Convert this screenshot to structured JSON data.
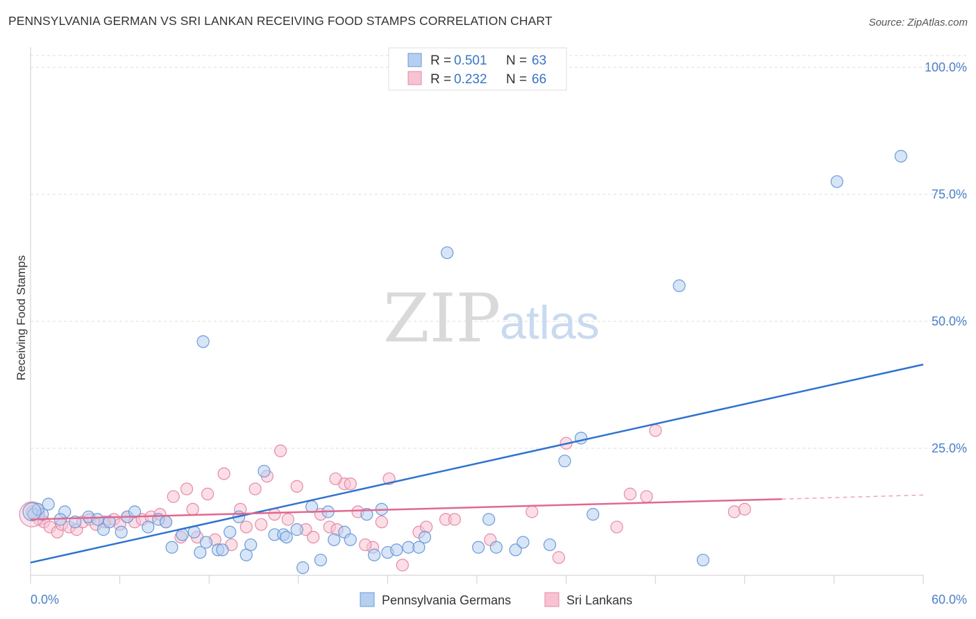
{
  "title": "PENNSYLVANIA GERMAN VS SRI LANKAN RECEIVING FOOD STAMPS CORRELATION CHART",
  "source": "Source: ZipAtlas.com",
  "watermark": {
    "left": "ZIP",
    "right": "atlas"
  },
  "colors": {
    "blue_fill": "#b6cff0",
    "blue_stroke": "#6b9ad8",
    "blue_line": "#2f72d0",
    "pink_fill": "#f7c3d2",
    "pink_stroke": "#e58aa6",
    "pink_line": "#e0688f",
    "grid": "#dddddd",
    "tick_text": "#4a7fc8"
  },
  "legend": {
    "r_label": "R =",
    "n_label": "N =",
    "items": [
      {
        "r": "0.501",
        "n": "63"
      },
      {
        "r": "0.232",
        "n": "66"
      }
    ]
  },
  "chart_data": {
    "type": "scatter",
    "xlabel": "",
    "ylabel": "Receiving Food Stamps",
    "xlim": [
      0,
      60
    ],
    "ylim": [
      0,
      100
    ],
    "x_tick_labels": [
      "0.0%",
      "60.0%"
    ],
    "y_tick_values": [
      25,
      50,
      75,
      100
    ],
    "y_tick_labels": [
      "25.0%",
      "50.0%",
      "75.0%",
      "100.0%"
    ],
    "grid": true,
    "legend_position": "top-center",
    "series": [
      {
        "name": "Pennsylvania Germans",
        "color": "#6b9ad8",
        "trend": {
          "x": [
            0,
            60
          ],
          "y": [
            2.5,
            41.5
          ]
        },
        "points": [
          [
            0.2,
            12
          ],
          [
            0.8,
            12
          ],
          [
            1.2,
            14
          ],
          [
            2.3,
            12.5
          ],
          [
            3.0,
            10.5
          ],
          [
            3.9,
            11.5
          ],
          [
            4.5,
            11
          ],
          [
            4.9,
            9
          ],
          [
            5.3,
            10.5
          ],
          [
            6.1,
            8.5
          ],
          [
            6.5,
            11.5
          ],
          [
            7.0,
            12.5
          ],
          [
            7.9,
            9.5
          ],
          [
            8.6,
            11
          ],
          [
            9.1,
            10.5
          ],
          [
            9.5,
            5.5
          ],
          [
            10.2,
            8
          ],
          [
            11.0,
            8.5
          ],
          [
            11.4,
            4.5
          ],
          [
            11.6,
            46
          ],
          [
            11.8,
            6.5
          ],
          [
            12.6,
            5
          ],
          [
            12.9,
            5
          ],
          [
            13.4,
            8.5
          ],
          [
            14.0,
            11.5
          ],
          [
            14.5,
            4
          ],
          [
            14.8,
            6
          ],
          [
            15.7,
            20.5
          ],
          [
            16.4,
            8
          ],
          [
            17.0,
            8
          ],
          [
            17.2,
            7.5
          ],
          [
            17.9,
            9
          ],
          [
            18.3,
            1.5
          ],
          [
            18.9,
            13.5
          ],
          [
            19.5,
            3
          ],
          [
            20.0,
            12.5
          ],
          [
            20.4,
            7
          ],
          [
            21.1,
            8.5
          ],
          [
            21.5,
            7
          ],
          [
            22.6,
            12
          ],
          [
            23.1,
            4
          ],
          [
            23.6,
            13
          ],
          [
            24.0,
            4.5
          ],
          [
            24.6,
            5
          ],
          [
            25.4,
            5.5
          ],
          [
            26.1,
            5.5
          ],
          [
            26.5,
            7.5
          ],
          [
            28.0,
            63.5
          ],
          [
            30.1,
            5.5
          ],
          [
            30.8,
            11
          ],
          [
            31.3,
            5.5
          ],
          [
            32.6,
            5
          ],
          [
            33.1,
            6.5
          ],
          [
            34.9,
            6
          ],
          [
            35.9,
            22.5
          ],
          [
            37.0,
            27
          ],
          [
            37.8,
            12
          ],
          [
            43.6,
            57
          ],
          [
            45.2,
            3
          ],
          [
            54.2,
            77.5
          ],
          [
            58.5,
            82.5
          ],
          [
            0.5,
            13
          ],
          [
            2.0,
            11
          ]
        ]
      },
      {
        "name": "Sri Lankans",
        "color": "#e58aa6",
        "trend": {
          "x": [
            0,
            50.5
          ],
          "y": [
            11,
            15
          ]
        },
        "trend_dashed": {
          "x": [
            50.5,
            60
          ],
          "y": [
            15,
            15.8
          ]
        },
        "points": [
          [
            0.1,
            12.5
          ],
          [
            0.6,
            11
          ],
          [
            0.9,
            10.5
          ],
          [
            1.3,
            9.5
          ],
          [
            1.8,
            8.5
          ],
          [
            2.1,
            10
          ],
          [
            2.6,
            9.5
          ],
          [
            3.1,
            9
          ],
          [
            3.5,
            10.5
          ],
          [
            4.0,
            11
          ],
          [
            4.4,
            10
          ],
          [
            5.0,
            10.5
          ],
          [
            5.6,
            11
          ],
          [
            6.0,
            10
          ],
          [
            6.5,
            11.5
          ],
          [
            7.0,
            10.5
          ],
          [
            7.5,
            11
          ],
          [
            8.1,
            11.5
          ],
          [
            8.7,
            12
          ],
          [
            9.1,
            10.5
          ],
          [
            9.6,
            15.5
          ],
          [
            10.1,
            7.5
          ],
          [
            10.5,
            17
          ],
          [
            10.9,
            13
          ],
          [
            11.2,
            7.5
          ],
          [
            11.9,
            16
          ],
          [
            12.4,
            7
          ],
          [
            13.0,
            20
          ],
          [
            13.5,
            6
          ],
          [
            14.1,
            13
          ],
          [
            14.5,
            9.5
          ],
          [
            15.1,
            17
          ],
          [
            15.5,
            10
          ],
          [
            15.9,
            19.5
          ],
          [
            16.4,
            12
          ],
          [
            16.8,
            24.5
          ],
          [
            17.3,
            11
          ],
          [
            17.9,
            17.5
          ],
          [
            18.5,
            9
          ],
          [
            19.0,
            7.5
          ],
          [
            19.5,
            12
          ],
          [
            20.1,
            9.5
          ],
          [
            20.6,
            9
          ],
          [
            21.1,
            18
          ],
          [
            21.5,
            18
          ],
          [
            22.0,
            12.5
          ],
          [
            23.0,
            5.5
          ],
          [
            23.6,
            10.5
          ],
          [
            24.1,
            19
          ],
          [
            25.0,
            2
          ],
          [
            26.1,
            8.5
          ],
          [
            26.6,
            9.5
          ],
          [
            27.9,
            11
          ],
          [
            28.5,
            11
          ],
          [
            30.9,
            7
          ],
          [
            33.7,
            12.5
          ],
          [
            35.5,
            3.5
          ],
          [
            36.0,
            26
          ],
          [
            39.4,
            9.5
          ],
          [
            40.3,
            16
          ],
          [
            41.4,
            15.5
          ],
          [
            42.0,
            28.5
          ],
          [
            47.3,
            12.5
          ],
          [
            48.0,
            13
          ],
          [
            22.5,
            6
          ],
          [
            20.5,
            19
          ]
        ]
      }
    ]
  }
}
